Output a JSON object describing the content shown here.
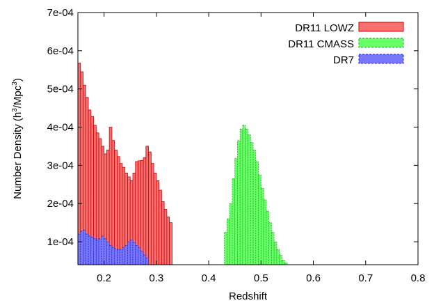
{
  "chart_data": {
    "type": "bar",
    "title": "",
    "xlabel": "Redshift",
    "ylabel": {
      "prefix": "Number Density (h",
      "sup1": "3",
      "mid": "/Mpc",
      "sup2": "3",
      "suffix": ")"
    },
    "xlim": [
      0.15,
      0.8
    ],
    "ylim": [
      4e-05,
      0.0007
    ],
    "bin_width": 0.005,
    "xticks": [
      {
        "value": 0.2,
        "label": "0.2"
      },
      {
        "value": 0.3,
        "label": "0.3"
      },
      {
        "value": 0.4,
        "label": "0.4"
      },
      {
        "value": 0.5,
        "label": "0.5"
      },
      {
        "value": 0.6,
        "label": "0.6"
      },
      {
        "value": 0.7,
        "label": "0.7"
      },
      {
        "value": 0.8,
        "label": "0.8"
      }
    ],
    "yticks": [
      {
        "value": 0.0001,
        "label": "1e-04"
      },
      {
        "value": 0.0002,
        "label": "2e-04"
      },
      {
        "value": 0.0003,
        "label": "3e-04"
      },
      {
        "value": 0.0004,
        "label": "4e-04"
      },
      {
        "value": 0.0005,
        "label": "5e-04"
      },
      {
        "value": 0.0006,
        "label": "6e-04"
      },
      {
        "value": 0.0007,
        "label": "7e-04"
      }
    ],
    "grid": false,
    "legend_position": "top-right",
    "series": [
      {
        "name": "DR11 LOWZ",
        "fill": "#f87171",
        "stroke": "#cc0000",
        "dashed": false,
        "x_start": 0.15,
        "values": [
          0.000568,
          0.000545,
          0.00051,
          0.000478,
          0.000445,
          0.000428,
          0.000405,
          0.000385,
          0.00037,
          0.00035,
          0.00033,
          0.00034,
          0.0004,
          0.000365,
          0.00034,
          0.000323,
          0.000305,
          0.000295,
          0.00028,
          0.00027,
          0.00026,
          0.00028,
          0.00031,
          0.000312,
          0.000313,
          0.00032,
          0.00035,
          0.000335,
          0.000305,
          0.00028,
          0.00026,
          0.000235,
          0.000205,
          0.000185,
          0.000165,
          0.00015
        ]
      },
      {
        "name": "DR11 CMASS",
        "fill": "#66ff66",
        "stroke": "#22aa22",
        "dashed": true,
        "x_start": 0.43,
        "values": [
          0.000125,
          0.00016,
          0.0002,
          0.000265,
          0.000318,
          0.000365,
          0.000395,
          0.000405,
          0.000395,
          0.00038,
          0.00036,
          0.00034,
          0.00031,
          0.000275,
          0.00024,
          0.00021,
          0.00018,
          0.00015,
          0.000125,
          0.0001,
          8e-05,
          6.5e-05,
          5.2e-05,
          4.5e-05
        ]
      },
      {
        "name": "DR7",
        "fill": "#7777ff",
        "stroke": "#2222cc",
        "dashed": true,
        "x_start": 0.15,
        "values": [
          0.00012,
          0.000128,
          0.00013,
          0.00012,
          0.000115,
          0.000112,
          0.000108,
          0.000105,
          0.000108,
          0.000115,
          0.000108,
          0.0001,
          9e-05,
          8.5e-05,
          8.2e-05,
          8e-05,
          8e-05,
          8.5e-05,
          9e-05,
          0.0001,
          0.000105,
          9.8e-05,
          9e-05,
          8.5e-05,
          7.5e-05,
          6.5e-05,
          5.8e-05
        ]
      }
    ]
  }
}
